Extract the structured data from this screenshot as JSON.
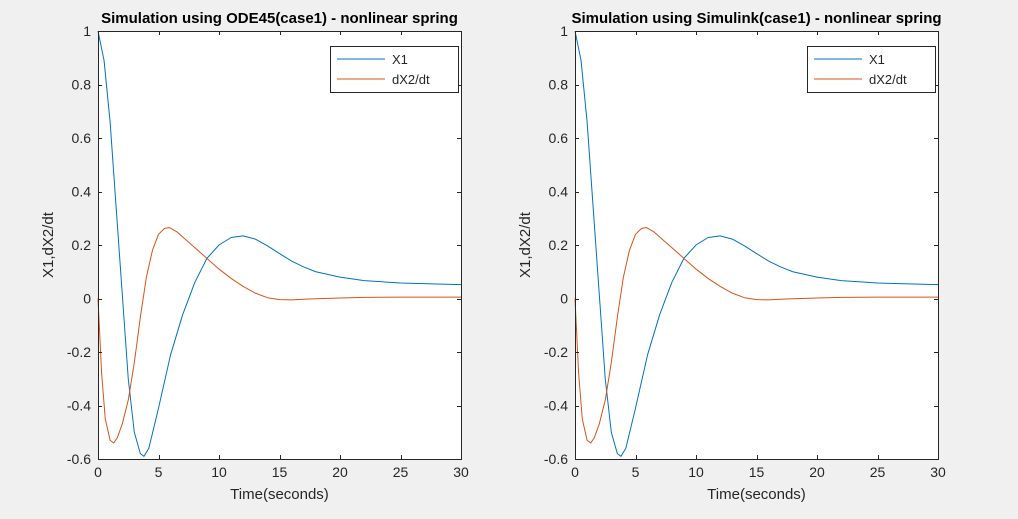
{
  "figure": {
    "background": "#f0f0f0"
  },
  "colors": {
    "x1": "#0072bd",
    "dx2": "#d95319",
    "axes": "#262626",
    "plot_bg": "#ffffff"
  },
  "chart_data": [
    {
      "type": "line",
      "title": "Simulation using ODE45(case1) - nonlinear spring",
      "xlabel": "Time(seconds)",
      "ylabel": "X1,dX2/dt",
      "xlim": [
        0,
        30
      ],
      "ylim": [
        -0.6,
        1
      ],
      "xticks": [
        0,
        5,
        10,
        15,
        20,
        25,
        30
      ],
      "xtick_labels": [
        "0",
        "5",
        "10",
        "15",
        "20",
        "25",
        "30"
      ],
      "yticks": [
        -0.6,
        -0.4,
        -0.2,
        0,
        0.2,
        0.4,
        0.6,
        0.8,
        1
      ],
      "ytick_labels": [
        "-0.6",
        "-0.4",
        "-0.2",
        "0",
        "0.2",
        "0.4",
        "0.6",
        "0.8",
        "1"
      ],
      "grid": false,
      "legend_position": "top-right",
      "series": [
        {
          "name": "X1",
          "color": "#0072bd",
          "x": [
            0,
            0.5,
            1,
            1.5,
            2,
            2.5,
            3,
            3.5,
            3.8,
            4.2,
            5,
            6,
            7,
            8,
            9,
            10,
            11,
            12,
            13,
            14,
            15,
            16,
            17,
            18,
            20,
            22,
            25,
            28,
            30
          ],
          "y": [
            1,
            0.89,
            0.66,
            0.34,
            0.02,
            -0.3,
            -0.5,
            -0.58,
            -0.59,
            -0.56,
            -0.41,
            -0.21,
            -0.06,
            0.06,
            0.15,
            0.2,
            0.228,
            0.234,
            0.222,
            0.197,
            0.168,
            0.14,
            0.118,
            0.1,
            0.08,
            0.067,
            0.058,
            0.054,
            0.052
          ]
        },
        {
          "name": "dX2/dt",
          "color": "#d95319",
          "x": [
            0,
            0.3,
            0.6,
            1,
            1.3,
            1.6,
            2,
            2.5,
            3,
            3.5,
            4,
            4.5,
            5,
            5.5,
            5.9,
            6.5,
            7,
            8,
            9,
            10,
            11,
            12,
            13,
            14,
            15,
            16,
            17,
            18,
            20,
            22,
            25,
            28,
            30
          ],
          "y": [
            0,
            -0.28,
            -0.45,
            -0.53,
            -0.54,
            -0.52,
            -0.47,
            -0.38,
            -0.24,
            -0.07,
            0.08,
            0.18,
            0.24,
            0.262,
            0.265,
            0.25,
            0.23,
            0.19,
            0.15,
            0.11,
            0.075,
            0.045,
            0.02,
            0.003,
            -0.004,
            -0.005,
            -0.003,
            -0.001,
            0.002,
            0.004,
            0.005,
            0.005,
            0.005
          ]
        }
      ]
    },
    {
      "type": "line",
      "title": "Simulation using Simulink(case1) - nonlinear spring",
      "xlabel": "Time(seconds)",
      "ylabel": "X1,dX2/dt",
      "xlim": [
        0,
        30
      ],
      "ylim": [
        -0.6,
        1
      ],
      "xticks": [
        0,
        5,
        10,
        15,
        20,
        25,
        30
      ],
      "xtick_labels": [
        "0",
        "5",
        "10",
        "15",
        "20",
        "25",
        "30"
      ],
      "yticks": [
        -0.6,
        -0.4,
        -0.2,
        0,
        0.2,
        0.4,
        0.6,
        0.8,
        1
      ],
      "ytick_labels": [
        "-0.6",
        "-0.4",
        "-0.2",
        "0",
        "0.2",
        "0.4",
        "0.6",
        "0.8",
        "1"
      ],
      "grid": false,
      "legend_position": "top-right",
      "series": [
        {
          "name": "X1",
          "color": "#0072bd",
          "x": [
            0,
            0.5,
            1,
            1.5,
            2,
            2.5,
            3,
            3.5,
            3.8,
            4.2,
            5,
            6,
            7,
            8,
            9,
            10,
            11,
            12,
            13,
            14,
            15,
            16,
            17,
            18,
            20,
            22,
            25,
            28,
            30
          ],
          "y": [
            1,
            0.89,
            0.66,
            0.34,
            0.02,
            -0.3,
            -0.5,
            -0.58,
            -0.59,
            -0.56,
            -0.41,
            -0.21,
            -0.06,
            0.06,
            0.15,
            0.2,
            0.228,
            0.234,
            0.222,
            0.197,
            0.168,
            0.14,
            0.118,
            0.1,
            0.08,
            0.067,
            0.058,
            0.054,
            0.052
          ]
        },
        {
          "name": "dX2/dt",
          "color": "#d95319",
          "x": [
            0,
            0.3,
            0.6,
            1,
            1.3,
            1.6,
            2,
            2.5,
            3,
            3.5,
            4,
            4.5,
            5,
            5.5,
            5.9,
            6.5,
            7,
            8,
            9,
            10,
            11,
            12,
            13,
            14,
            15,
            16,
            17,
            18,
            20,
            22,
            25,
            28,
            30
          ],
          "y": [
            0,
            -0.28,
            -0.45,
            -0.53,
            -0.54,
            -0.52,
            -0.47,
            -0.38,
            -0.24,
            -0.07,
            0.08,
            0.18,
            0.24,
            0.262,
            0.265,
            0.25,
            0.23,
            0.19,
            0.15,
            0.11,
            0.075,
            0.045,
            0.02,
            0.003,
            -0.004,
            -0.005,
            -0.003,
            -0.001,
            0.002,
            0.004,
            0.005,
            0.005,
            0.005
          ]
        }
      ]
    }
  ]
}
